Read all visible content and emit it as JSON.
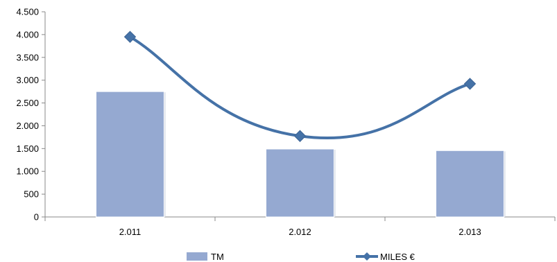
{
  "chart_data": {
    "type": "bar",
    "categories": [
      "2.011",
      "2.012",
      "2.013"
    ],
    "series": [
      {
        "name": "TM",
        "type": "bar",
        "values": [
          2750,
          1490,
          1455
        ],
        "color": "#95A9D1"
      },
      {
        "name": "MILES €",
        "type": "line",
        "smooth": true,
        "marker": "diamond",
        "values": [
          3950,
          1775,
          2920
        ],
        "color": "#4572A7"
      }
    ],
    "ylim": [
      0,
      4500
    ],
    "ytick_values": [
      0,
      500,
      1000,
      1500,
      2000,
      2500,
      3000,
      3500,
      4000,
      4500
    ],
    "ytick_labels": [
      "0",
      "500",
      "1.000",
      "1.500",
      "2.000",
      "2.500",
      "3.000",
      "3.500",
      "4.000",
      "4.500"
    ],
    "grid": false,
    "legend_position": "bottom",
    "title": "",
    "xlabel": "",
    "ylabel": ""
  }
}
